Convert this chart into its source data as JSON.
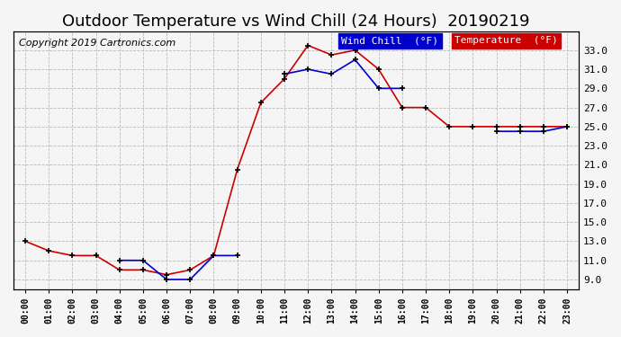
{
  "title": "Outdoor Temperature vs Wind Chill (24 Hours)  20190219",
  "copyright": "Copyright 2019 Cartronics.com",
  "hours": [
    "00:00",
    "01:00",
    "02:00",
    "03:00",
    "04:00",
    "05:00",
    "06:00",
    "07:00",
    "08:00",
    "09:00",
    "10:00",
    "11:00",
    "12:00",
    "13:00",
    "14:00",
    "15:00",
    "16:00",
    "17:00",
    "18:00",
    "19:00",
    "20:00",
    "21:00",
    "22:00",
    "23:00"
  ],
  "temperature": [
    13.0,
    12.0,
    11.5,
    11.5,
    10.0,
    10.0,
    9.5,
    10.0,
    11.5,
    20.5,
    27.5,
    30.0,
    33.5,
    32.5,
    33.0,
    31.0,
    27.0,
    27.0,
    25.0,
    25.0,
    25.0,
    25.0,
    25.0,
    25.0
  ],
  "wind_chill": [
    null,
    null,
    null,
    null,
    11.0,
    11.0,
    9.0,
    9.0,
    11.5,
    11.5,
    null,
    30.5,
    31.0,
    30.5,
    32.0,
    29.0,
    29.0,
    null,
    null,
    null,
    24.5,
    24.5,
    24.5,
    25.0
  ],
  "temp_color": "#cc0000",
  "wind_chill_color": "#0000cc",
  "ylim": [
    8.0,
    35.0
  ],
  "yticks": [
    9.0,
    11.0,
    13.0,
    15.0,
    17.0,
    19.0,
    21.0,
    23.0,
    25.0,
    27.0,
    29.0,
    31.0,
    33.0
  ],
  "bg_color": "#f5f5f5",
  "grid_color": "#bbbbbb",
  "legend_wind_chill_bg": "#0000cc",
  "legend_temp_bg": "#cc0000",
  "title_fontsize": 13,
  "copyright_fontsize": 8
}
